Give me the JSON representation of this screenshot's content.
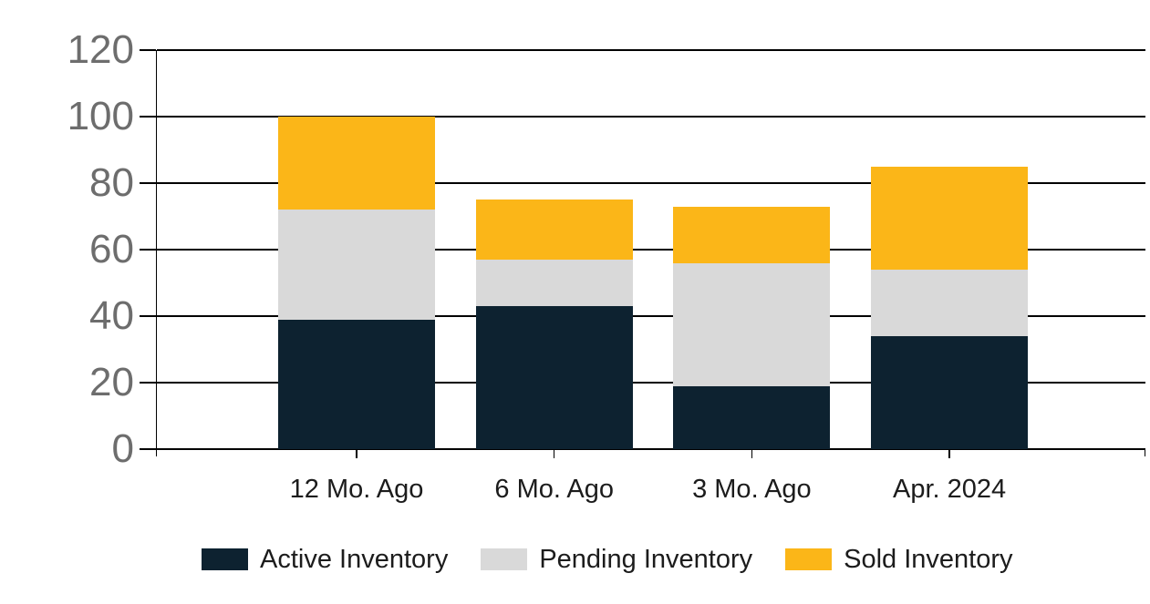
{
  "chart_data": {
    "type": "bar",
    "stacked": true,
    "title": "",
    "xlabel": "",
    "ylabel": "",
    "categories": [
      "12 Mo. Ago",
      "6 Mo. Ago",
      "3 Mo. Ago",
      "Apr. 2024"
    ],
    "series": [
      {
        "name": "Active Inventory",
        "color": "#0d2230",
        "values": [
          39,
          43,
          19,
          34
        ]
      },
      {
        "name": "Pending Inventory",
        "color": "#d9d9d9",
        "values": [
          33,
          14,
          37,
          20
        ]
      },
      {
        "name": "Sold Inventory",
        "color": "#fbb618",
        "values": [
          28,
          18,
          17,
          31
        ]
      }
    ],
    "stack_totals": [
      100,
      75,
      73,
      85
    ],
    "ylim": [
      0,
      120
    ],
    "yticks": [
      0,
      20,
      40,
      60,
      80,
      100,
      120
    ],
    "grid": true,
    "legend_position": "bottom"
  },
  "colors": {
    "axis": "#000000",
    "y_tick_label": "#6d6d6d",
    "x_tick_label": "#1c1c1c",
    "background": "#ffffff"
  }
}
